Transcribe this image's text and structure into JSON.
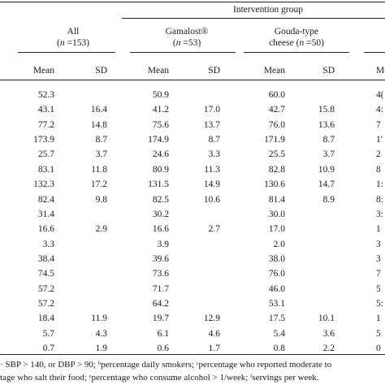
{
  "header": {
    "group_title": "Intervention group",
    "groups": [
      {
        "label": "All",
        "n": "153"
      },
      {
        "label": "Gamalost®",
        "n": "53"
      },
      {
        "label": "Gouda-type",
        "label2": "cheese",
        "n": "50"
      }
    ],
    "mean_label": "Mean",
    "sd_label": "SD",
    "partial_mean_label": "Me"
  },
  "rows": [
    {
      "all_mean": "52.3",
      "all_sd": "",
      "gam_mean": "50.9",
      "gam_sd": "",
      "gou_mean": "60.0",
      "gou_sd": "",
      "cut": "4("
    },
    {
      "all_mean": "43.1",
      "all_sd": "16.4",
      "gam_mean": "41.2",
      "gam_sd": "17.0",
      "gou_mean": "42.7",
      "gou_sd": "15.8",
      "cut": "4:"
    },
    {
      "all_mean": "77.2",
      "all_sd": "14.8",
      "gam_mean": "75.6",
      "gam_sd": "13.7",
      "gou_mean": "76.0",
      "gou_sd": "13.6",
      "cut": "7"
    },
    {
      "all_mean": "173.9",
      "all_sd": "8.7",
      "gam_mean": "174.9",
      "gam_sd": "8.7",
      "gou_mean": "171.9",
      "gou_sd": "8.7",
      "cut": "1'"
    },
    {
      "all_mean": "25.7",
      "all_sd": "3.7",
      "gam_mean": "24.6",
      "gam_sd": "3.3",
      "gou_mean": "25.5",
      "gou_sd": "3.7",
      "cut": "2"
    },
    {
      "all_mean": "83.1",
      "all_sd": "11.8",
      "gam_mean": "80.9",
      "gam_sd": "11.3",
      "gou_mean": "82.8",
      "gou_sd": "10.9",
      "cut": "8"
    },
    {
      "all_mean": "132.3",
      "all_sd": "17.2",
      "gam_mean": "131.5",
      "gam_sd": "14.9",
      "gou_mean": "130.6",
      "gou_sd": "14.7",
      "cut": "1:"
    },
    {
      "all_mean": "82.4",
      "all_sd": "9.8",
      "gam_mean": "82.5",
      "gam_sd": "10.6",
      "gou_mean": "81.4",
      "gou_sd": "8.9",
      "cut": "8:"
    },
    {
      "all_mean": "31.4",
      "all_sd": "",
      "gam_mean": "30.2",
      "gam_sd": "",
      "gou_mean": "30.0",
      "gou_sd": "",
      "cut": "3:"
    },
    {
      "all_mean": "16.6",
      "all_sd": "2.9",
      "gam_mean": "16.6",
      "gam_sd": "2.7",
      "gou_mean": "17.0",
      "gou_sd": "",
      "cut": "1"
    },
    {
      "all_mean": "3.3",
      "all_sd": "",
      "gam_mean": "3.9",
      "gam_sd": "",
      "gou_mean": "2.0",
      "gou_sd": "",
      "cut": "3"
    },
    {
      "all_mean": "38.4",
      "all_sd": "",
      "gam_mean": "39.6",
      "gam_sd": "",
      "gou_mean": "38.0",
      "gou_sd": "",
      "cut": "3"
    },
    {
      "all_mean": "74.5",
      "all_sd": "",
      "gam_mean": "73.6",
      "gam_sd": "",
      "gou_mean": "76.0",
      "gou_sd": "",
      "cut": "7"
    },
    {
      "all_mean": "57.2",
      "all_sd": "",
      "gam_mean": "71.7",
      "gam_sd": "",
      "gou_mean": "46.0",
      "gou_sd": "",
      "cut": "5"
    },
    {
      "all_mean": "57.2",
      "all_sd": "",
      "gam_mean": "64.2",
      "gam_sd": "",
      "gou_mean": "53.1",
      "gou_sd": "",
      "cut": "5:"
    },
    {
      "all_mean": "18.4",
      "all_sd": "11.9",
      "gam_mean": "19.7",
      "gam_sd": "12.9",
      "gou_mean": "17.5",
      "gou_sd": "10.1",
      "cut": "1"
    },
    {
      "all_mean": "5.7",
      "all_sd": "4.3",
      "gam_mean": "6.1",
      "gam_sd": "4.6",
      "gou_mean": "5.4",
      "gou_sd": "3.6",
      "cut": "5"
    },
    {
      "all_mean": "0.7",
      "all_sd": "1.9",
      "gam_mean": "0.6",
      "gam_sd": "1.7",
      "gou_mean": "0.8",
      "gou_sd": "2.2",
      "cut": "0"
    }
  ],
  "footnotes": {
    "line1": "· SBP > 140, or DBP > 90; ᵇpercentage daily smokers; ᶜpercentage who reported moderate to",
    "line2": "tage who salt their food; ᵉpercentage who consume alcohol > 1/week; ᶠservings per week."
  }
}
